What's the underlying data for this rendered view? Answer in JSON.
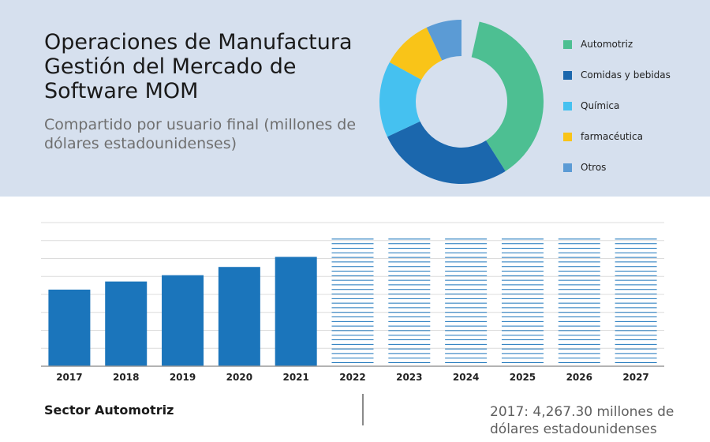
{
  "header": {
    "title_lines": [
      "Operaciones de Manufactura",
      "Gestión del Mercado de",
      "Software MOM"
    ],
    "subtitle_lines": [
      "Compartido por usuario final (millones de",
      "dólares estadounidenses)"
    ]
  },
  "donut_chart": {
    "type": "pie",
    "style": "donut",
    "legend_position": "right",
    "slices": [
      {
        "label": "Automotriz",
        "share": 0.375,
        "color": "#4dbf92"
      },
      {
        "label": "Comidas y bebidas",
        "share": 0.27,
        "color": "#1b67ad"
      },
      {
        "label": "Química",
        "share": 0.15,
        "color": "#45c1f0"
      },
      {
        "label": "farmacéutica",
        "share": 0.1,
        "color": "#f9c418"
      },
      {
        "label": "Otros",
        "share": 0.07,
        "color": "#5b9bd5"
      }
    ]
  },
  "chart_data": {
    "type": "bar",
    "title": "",
    "xlabel": "",
    "ylabel": "",
    "categories": [
      "2017",
      "2018",
      "2019",
      "2020",
      "2021",
      "2022",
      "2023",
      "2024",
      "2025",
      "2026",
      "2027"
    ],
    "values": [
      4267.3,
      4719,
      5069,
      5529,
      6089,
      null,
      null,
      null,
      null,
      null,
      null
    ],
    "forecast_placeholder_level": 7080,
    "ylim": [
      0,
      8000
    ],
    "grid": true,
    "bar_color": "#1b75bb",
    "forecast_line_color": "#1b75bb",
    "axis_color": "#9a9a9a",
    "grid_color": "#dcdcdc"
  },
  "footer": {
    "sector_label": "Sector Automotriz",
    "value_lines": [
      "2017: 4,267.30 millones de",
      "dólares estadounidenses"
    ]
  }
}
